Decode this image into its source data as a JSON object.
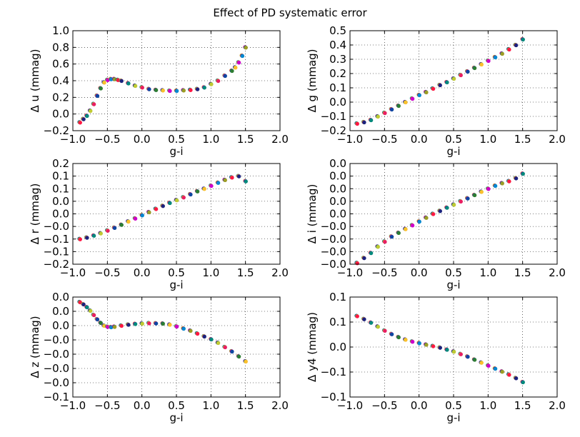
{
  "figure": {
    "title": "Effect of PD systematic error"
  },
  "colors": [
    "#1a237e",
    "#0d47a1",
    "#0288d1",
    "#00897b",
    "#2e7d32",
    "#9e9d24",
    "#c0ca33",
    "#fbc02d",
    "#ff1744",
    "#e91e63",
    "#cc00cc"
  ],
  "chart_data": [
    {
      "type": "scatter",
      "panel": "u",
      "xlabel": "g-i",
      "ylabel": "Δ u (mmag)",
      "xlim": [
        -1.0,
        2.0
      ],
      "ylim": [
        -0.2,
        1.0
      ],
      "xticks": [
        -1.0,
        -0.5,
        0.0,
        0.5,
        1.0,
        1.5,
        2.0
      ],
      "xtick_labels": [
        "−1.0",
        "−0.5",
        "0.0",
        "0.5",
        "1.0",
        "1.5",
        "2.0"
      ],
      "yticks": [
        -0.2,
        0.0,
        0.2,
        0.4,
        0.6,
        0.8,
        1.0
      ],
      "ytick_labels": [
        "−0.2",
        "0.0",
        "0.2",
        "0.4",
        "0.6",
        "0.8",
        "1.0"
      ],
      "grid": true,
      "x": [
        -0.9,
        -0.85,
        -0.8,
        -0.75,
        -0.7,
        -0.65,
        -0.6,
        -0.55,
        -0.5,
        -0.45,
        -0.4,
        -0.35,
        -0.3,
        -0.2,
        -0.1,
        0.0,
        0.1,
        0.2,
        0.3,
        0.4,
        0.5,
        0.6,
        0.7,
        0.8,
        0.9,
        1.0,
        1.1,
        1.2,
        1.3,
        1.35,
        1.4,
        1.45,
        1.5
      ],
      "y": [
        -0.1,
        -0.06,
        -0.02,
        0.04,
        0.12,
        0.22,
        0.31,
        0.38,
        0.41,
        0.42,
        0.42,
        0.41,
        0.4,
        0.37,
        0.34,
        0.32,
        0.3,
        0.29,
        0.285,
        0.28,
        0.28,
        0.285,
        0.29,
        0.3,
        0.32,
        0.36,
        0.4,
        0.46,
        0.52,
        0.56,
        0.62,
        0.7,
        0.8
      ]
    },
    {
      "type": "scatter",
      "panel": "g",
      "xlabel": "g-i",
      "ylabel": "Δ g (mmag)",
      "xlim": [
        -1.0,
        2.0
      ],
      "ylim": [
        -0.2,
        0.5
      ],
      "xticks": [
        -1.0,
        -0.5,
        0.0,
        0.5,
        1.0,
        1.5,
        2.0
      ],
      "xtick_labels": [
        "−1.0",
        "−0.5",
        "0.0",
        "0.5",
        "1.0",
        "1.5",
        "2.0"
      ],
      "yticks": [
        -0.2,
        -0.1,
        0.0,
        0.1,
        0.2,
        0.3,
        0.4,
        0.5
      ],
      "ytick_labels": [
        "−0.2",
        "−0.1",
        "0.0",
        "0.1",
        "0.2",
        "0.3",
        "0.4",
        "0.5"
      ],
      "grid": true,
      "x": [
        -0.9,
        -0.8,
        -0.7,
        -0.6,
        -0.5,
        -0.4,
        -0.3,
        -0.2,
        -0.1,
        0.0,
        0.1,
        0.2,
        0.3,
        0.4,
        0.5,
        0.6,
        0.7,
        0.8,
        0.9,
        1.0,
        1.1,
        1.2,
        1.3,
        1.4,
        1.5
      ],
      "y": [
        -0.15,
        -0.14,
        -0.125,
        -0.1,
        -0.075,
        -0.05,
        -0.025,
        0.0,
        0.025,
        0.05,
        0.07,
        0.095,
        0.12,
        0.14,
        0.165,
        0.19,
        0.215,
        0.24,
        0.265,
        0.29,
        0.315,
        0.34,
        0.37,
        0.4,
        0.44
      ]
    },
    {
      "type": "scatter",
      "panel": "r",
      "xlabel": "g-i",
      "ylabel": "Δ r (mmag)",
      "xlim": [
        -1.0,
        2.0
      ],
      "ylim": [
        -0.2,
        0.2
      ],
      "xticks": [
        -1.0,
        -0.5,
        0.0,
        0.5,
        1.0,
        1.5,
        2.0
      ],
      "xtick_labels": [
        "−1.0",
        "−0.5",
        "0.0",
        "0.5",
        "1.0",
        "1.5",
        "2.0"
      ],
      "yticks": [
        -0.2,
        -0.15,
        -0.1,
        -0.05,
        0.0,
        0.05,
        0.1,
        0.15,
        0.2
      ],
      "ytick_labels": [
        "−0.2",
        "−0.1",
        "−0.1",
        "−0.0",
        "0.0",
        "0.0",
        "0.1",
        "0.1",
        "0.2"
      ],
      "grid": true,
      "x": [
        -0.9,
        -0.8,
        -0.7,
        -0.6,
        -0.5,
        -0.4,
        -0.3,
        -0.2,
        -0.1,
        0.0,
        0.1,
        0.2,
        0.3,
        0.4,
        0.5,
        0.6,
        0.7,
        0.8,
        0.9,
        1.0,
        1.1,
        1.2,
        1.3,
        1.4,
        1.5
      ],
      "y": [
        -0.1,
        -0.094,
        -0.086,
        -0.077,
        -0.066,
        -0.055,
        -0.043,
        -0.03,
        -0.018,
        -0.005,
        0.007,
        0.02,
        0.032,
        0.044,
        0.055,
        0.066,
        0.078,
        0.09,
        0.1,
        0.112,
        0.124,
        0.135,
        0.145,
        0.15,
        0.13
      ]
    },
    {
      "type": "scatter",
      "panel": "i",
      "xlabel": "g-i",
      "ylabel": "Δ i (mmag)",
      "xlim": [
        -1.0,
        2.0
      ],
      "ylim": [
        -0.02,
        0.02
      ],
      "xticks": [
        -1.0,
        -0.5,
        0.0,
        0.5,
        1.0,
        1.5,
        2.0
      ],
      "xtick_labels": [
        "−1.0",
        "−0.5",
        "0.0",
        "0.5",
        "1.0",
        "1.5",
        "2.0"
      ],
      "yticks": [
        -0.02,
        -0.015,
        -0.01,
        -0.005,
        0.0,
        0.005,
        0.01,
        0.015,
        0.02
      ],
      "ytick_labels": [
        "−0.0",
        "−0.0",
        "−0.0",
        "−0.0",
        "0.0",
        "0.0",
        "0.0",
        "0.0",
        "0.0"
      ],
      "grid": true,
      "x": [
        -0.9,
        -0.8,
        -0.7,
        -0.6,
        -0.5,
        -0.4,
        -0.3,
        -0.2,
        -0.1,
        0.0,
        0.1,
        0.2,
        0.3,
        0.4,
        0.5,
        0.6,
        0.7,
        0.8,
        0.9,
        1.0,
        1.1,
        1.2,
        1.3,
        1.4,
        1.5
      ],
      "y": [
        -0.0195,
        -0.0175,
        -0.0155,
        -0.013,
        -0.011,
        -0.009,
        -0.0075,
        -0.006,
        -0.0045,
        -0.003,
        -0.0015,
        0.0,
        0.0012,
        0.0025,
        0.0037,
        0.005,
        0.0062,
        0.0075,
        0.0088,
        0.01,
        0.0112,
        0.0122,
        0.013,
        0.0142,
        0.016
      ]
    },
    {
      "type": "scatter",
      "panel": "z",
      "xlabel": "g-i",
      "ylabel": "Δ z (mmag)",
      "xlim": [
        -1.0,
        2.0
      ],
      "ylim": [
        -0.1,
        0.04
      ],
      "xticks": [
        -1.0,
        -0.5,
        0.0,
        0.5,
        1.0,
        1.5,
        2.0
      ],
      "xtick_labels": [
        "−1.0",
        "−0.5",
        "0.0",
        "0.5",
        "1.0",
        "1.5",
        "2.0"
      ],
      "yticks": [
        -0.1,
        -0.08,
        -0.06,
        -0.04,
        -0.02,
        0.0,
        0.02,
        0.04
      ],
      "ytick_labels": [
        "−0.1",
        "−0.0",
        "−0.0",
        "−0.0",
        "−0.0",
        "0.0",
        "0.0",
        "0.0"
      ],
      "grid": true,
      "x": [
        -0.9,
        -0.85,
        -0.8,
        -0.75,
        -0.7,
        -0.65,
        -0.6,
        -0.55,
        -0.5,
        -0.45,
        -0.4,
        -0.3,
        -0.2,
        -0.1,
        0.0,
        0.1,
        0.2,
        0.3,
        0.4,
        0.5,
        0.6,
        0.7,
        0.8,
        0.9,
        1.0,
        1.1,
        1.2,
        1.3,
        1.4,
        1.5
      ],
      "y": [
        0.033,
        0.03,
        0.026,
        0.021,
        0.015,
        0.009,
        0.004,
        0.0,
        -0.0015,
        -0.002,
        -0.0015,
        0.0,
        0.0015,
        0.0025,
        0.003,
        0.0035,
        0.0033,
        0.003,
        0.0015,
        -0.001,
        -0.004,
        -0.007,
        -0.011,
        -0.015,
        -0.019,
        -0.024,
        -0.03,
        -0.036,
        -0.043,
        -0.05
      ]
    },
    {
      "type": "scatter",
      "panel": "y4",
      "xlabel": "g-i",
      "ylabel": "Δ y4 (mmag)",
      "xlim": [
        -1.0,
        2.0
      ],
      "ylim": [
        -0.1,
        0.1
      ],
      "xticks": [
        -1.0,
        -0.5,
        0.0,
        0.5,
        1.0,
        1.5,
        2.0
      ],
      "xtick_labels": [
        "−1.0",
        "−0.5",
        "0.0",
        "0.5",
        "1.0",
        "1.5",
        "2.0"
      ],
      "yticks": [
        -0.1,
        -0.05,
        0.0,
        0.05,
        0.1
      ],
      "ytick_labels": [
        "−0.1",
        "−0.1",
        "0.0",
        "0.1",
        "0.1"
      ],
      "grid": true,
      "x": [
        -0.9,
        -0.8,
        -0.7,
        -0.6,
        -0.5,
        -0.4,
        -0.3,
        -0.2,
        -0.1,
        0.0,
        0.1,
        0.2,
        0.3,
        0.4,
        0.5,
        0.6,
        0.7,
        0.8,
        0.9,
        1.0,
        1.1,
        1.2,
        1.3,
        1.4,
        1.5
      ],
      "y": [
        0.062,
        0.056,
        0.049,
        0.041,
        0.033,
        0.026,
        0.02,
        0.015,
        0.011,
        0.008,
        0.005,
        0.002,
        -0.001,
        -0.005,
        -0.009,
        -0.014,
        -0.019,
        -0.025,
        -0.031,
        -0.037,
        -0.043,
        -0.049,
        -0.055,
        -0.062,
        -0.07
      ]
    }
  ]
}
